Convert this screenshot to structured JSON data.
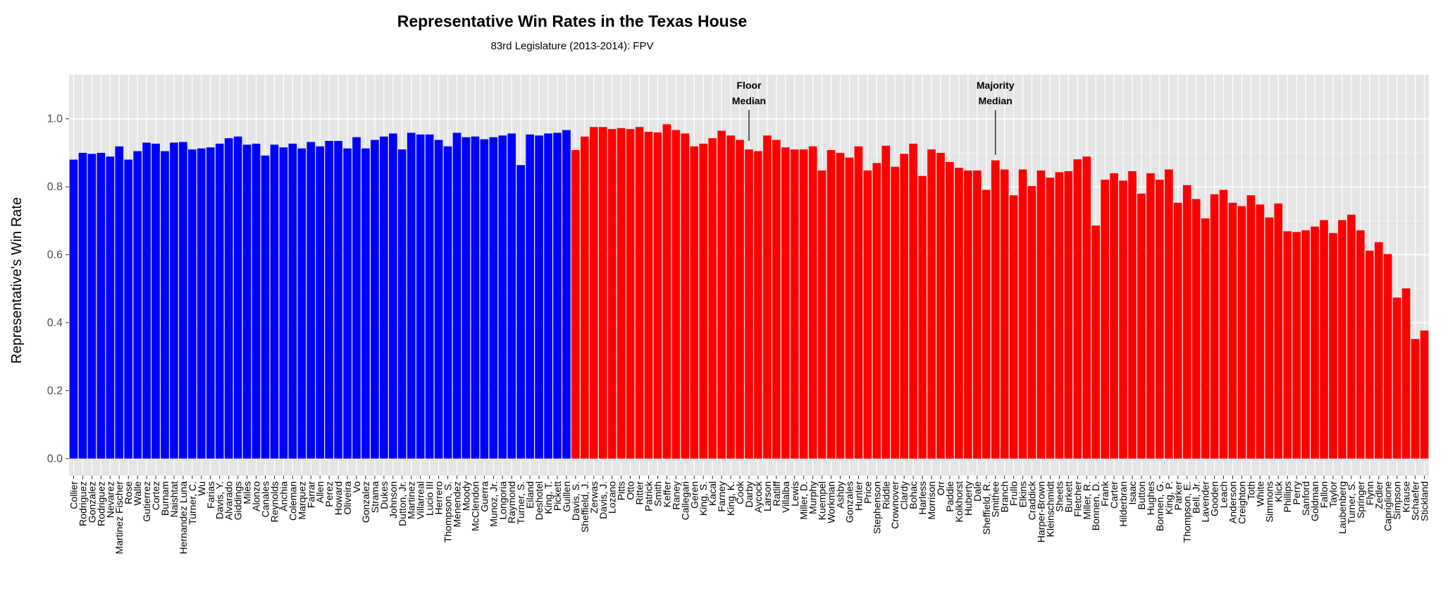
{
  "chart_data": {
    "type": "bar",
    "title": "Representative Win Rates in the Texas House",
    "subtitle": "83rd Legislature (2013-2014): FPV",
    "y_label": "Representative's Win Rate",
    "categories": [
      "Collier",
      "Rodriguez",
      "Gonzalez",
      "Rodriguez",
      "Nevarez",
      "Martinez Fischer",
      "Rose",
      "Walle",
      "Gutierrez",
      "Cortez",
      "Burnam",
      "Naishtat",
      "Hernandez Luna",
      "Turner, C.",
      "Wu",
      "Farias",
      "Davis, Y.",
      "Alvarado",
      "Giddings",
      "Miles",
      "Alonzo",
      "Canales",
      "Reynolds",
      "Anchia",
      "Coleman",
      "Marquez",
      "Farrar",
      "Allen",
      "Perez",
      "Howard",
      "Oliveira",
      "Vo",
      "Gonzalez",
      "Strama",
      "Dukes",
      "Johnson",
      "Dutton, Jr.",
      "Martinez",
      "Villarreal",
      "Lucio III",
      "Herrero",
      "Thompson, S.",
      "Menendez",
      "Moody",
      "McClendon",
      "Guerra",
      "Munoz, Jr.",
      "Longoria",
      "Raymond",
      "Turner, S.",
      "Eiland",
      "Deshotel",
      "King, T.",
      "Pickett",
      "Guillen",
      "Davis, S.",
      "Sheffield, J.",
      "Zerwas",
      "Davis, J.",
      "Lozano",
      "Pitts",
      "Otto",
      "Ritter",
      "Patrick",
      "Smith",
      "Keffer",
      "Raney",
      "Callegari",
      "Geren",
      "King, S.",
      "Kacal",
      "Farney",
      "King, K.",
      "Cook",
      "Darby",
      "Aycock",
      "Larson",
      "Ratliff",
      "Villalba",
      "Lewis",
      "Miller, D.",
      "Murphy",
      "Kuempel",
      "Workman",
      "Ashby",
      "Gonzales",
      "Hunter",
      "Price",
      "Stephenson",
      "Riddle",
      "Crownover",
      "Clardy",
      "Bohac",
      "Harless",
      "Morrison",
      "Orr",
      "Paddie",
      "Kolkhorst",
      "Huberty",
      "Dale",
      "Sheffield, R.",
      "Smithee",
      "Branch",
      "Frullo",
      "Elkins",
      "Craddick",
      "Harper-Brown",
      "Kleinschmidt",
      "Sheets",
      "Burkett",
      "Fletcher",
      "Miller, R.",
      "Bonnen, D.",
      "Frank",
      "Carter",
      "Hilderbran",
      "Isaac",
      "Button",
      "Hughes",
      "Bonnen, G.",
      "King, P.",
      "Parker",
      "Thompson, E.",
      "Bell, Jr.",
      "Lavender",
      "Gooden",
      "Leach",
      "Anderson",
      "Creighton",
      "Toth",
      "White",
      "Simmons",
      "Klick",
      "Phillips",
      "Perry",
      "Sanford",
      "Goldman",
      "Fallon",
      "Taylor",
      "Laubenberg",
      "Turner, S.",
      "Springer",
      "Flynn",
      "Zedler",
      "Capriglione",
      "Simpson",
      "Krause",
      "Schaefer",
      "Stickland"
    ],
    "values": [
      0.88,
      0.9,
      0.897,
      0.9,
      0.889,
      0.919,
      0.88,
      0.905,
      0.93,
      0.927,
      0.905,
      0.93,
      0.932,
      0.91,
      0.913,
      0.916,
      0.927,
      0.943,
      0.948,
      0.924,
      0.927,
      0.892,
      0.924,
      0.916,
      0.927,
      0.913,
      0.932,
      0.919,
      0.935,
      0.935,
      0.913,
      0.946,
      0.913,
      0.938,
      0.948,
      0.957,
      0.91,
      0.959,
      0.954,
      0.954,
      0.938,
      0.919,
      0.959,
      0.946,
      0.948,
      0.94,
      0.946,
      0.951,
      0.957,
      0.864,
      0.954,
      0.951,
      0.957,
      0.959,
      0.967,
      0.908,
      0.948,
      0.976,
      0.976,
      0.97,
      0.973,
      0.97,
      0.976,
      0.962,
      0.96,
      0.984,
      0.967,
      0.957,
      0.919,
      0.927,
      0.943,
      0.965,
      0.951,
      0.938,
      0.91,
      0.905,
      0.951,
      0.938,
      0.916,
      0.91,
      0.91,
      0.919,
      0.848,
      0.908,
      0.9,
      0.886,
      0.919,
      0.848,
      0.87,
      0.921,
      0.859,
      0.897,
      0.927,
      0.832,
      0.91,
      0.9,
      0.873,
      0.856,
      0.848,
      0.848,
      0.791,
      0.878,
      0.851,
      0.775,
      0.851,
      0.802,
      0.848,
      0.827,
      0.843,
      0.846,
      0.881,
      0.889,
      0.686,
      0.821,
      0.84,
      0.818,
      0.846,
      0.78,
      0.84,
      0.821,
      0.851,
      0.753,
      0.805,
      0.764,
      0.707,
      0.778,
      0.791,
      0.753,
      0.743,
      0.775,
      0.748,
      0.71,
      0.751,
      0.669,
      0.667,
      0.672,
      0.683,
      0.702,
      0.664,
      0.702,
      0.718,
      0.672,
      0.612,
      0.637,
      0.602,
      0.474,
      0.501,
      0.352,
      0.377
    ],
    "colors": [
      "#0000ff",
      "#0000ff",
      "#0000ff",
      "#0000ff",
      "#0000ff",
      "#0000ff",
      "#0000ff",
      "#0000ff",
      "#0000ff",
      "#0000ff",
      "#0000ff",
      "#0000ff",
      "#0000ff",
      "#0000ff",
      "#0000ff",
      "#0000ff",
      "#0000ff",
      "#0000ff",
      "#0000ff",
      "#0000ff",
      "#0000ff",
      "#0000ff",
      "#0000ff",
      "#0000ff",
      "#0000ff",
      "#0000ff",
      "#0000ff",
      "#0000ff",
      "#0000ff",
      "#0000ff",
      "#0000ff",
      "#0000ff",
      "#0000ff",
      "#0000ff",
      "#0000ff",
      "#0000ff",
      "#0000ff",
      "#0000ff",
      "#0000ff",
      "#0000ff",
      "#0000ff",
      "#0000ff",
      "#0000ff",
      "#0000ff",
      "#0000ff",
      "#0000ff",
      "#0000ff",
      "#0000ff",
      "#0000ff",
      "#0000ff",
      "#0000ff",
      "#0000ff",
      "#0000ff",
      "#0000ff",
      "#0000ff",
      "#ff0000",
      "#ff0000",
      "#ff0000",
      "#ff0000",
      "#ff0000",
      "#ff0000",
      "#ff0000",
      "#ff0000",
      "#ff0000",
      "#ff0000",
      "#ff0000",
      "#ff0000",
      "#ff0000",
      "#ff0000",
      "#ff0000",
      "#ff0000",
      "#ff0000",
      "#ff0000",
      "#ff0000",
      "#ff0000",
      "#ff0000",
      "#ff0000",
      "#ff0000",
      "#ff0000",
      "#ff0000",
      "#ff0000",
      "#ff0000",
      "#ff0000",
      "#ff0000",
      "#ff0000",
      "#ff0000",
      "#ff0000",
      "#ff0000",
      "#ff0000",
      "#ff0000",
      "#ff0000",
      "#ff0000",
      "#ff0000",
      "#ff0000",
      "#ff0000",
      "#ff0000",
      "#ff0000",
      "#ff0000",
      "#ff0000",
      "#ff0000",
      "#ff0000",
      "#ff0000",
      "#ff0000",
      "#ff0000",
      "#ff0000",
      "#ff0000",
      "#ff0000",
      "#ff0000",
      "#ff0000",
      "#ff0000",
      "#ff0000",
      "#ff0000",
      "#ff0000",
      "#ff0000",
      "#ff0000",
      "#ff0000",
      "#ff0000",
      "#ff0000",
      "#ff0000",
      "#ff0000",
      "#ff0000",
      "#ff0000",
      "#ff0000",
      "#ff0000",
      "#ff0000",
      "#ff0000",
      "#ff0000",
      "#ff0000",
      "#ff0000",
      "#ff0000",
      "#ff0000",
      "#ff0000",
      "#ff0000",
      "#ff0000",
      "#ff0000",
      "#ff0000",
      "#ff0000",
      "#ff0000",
      "#ff0000",
      "#ff0000",
      "#ff0000",
      "#ff0000",
      "#ff0000",
      "#ff0000",
      "#ff0000",
      "#ff0000",
      "#ff0000",
      "#ff0000",
      "#ff0000"
    ],
    "ylim": [
      -0.05,
      1.13
    ],
    "yticks": [
      {
        "value": 0,
        "label": "0.0"
      },
      0.2,
      0.4,
      0.6,
      0.8,
      {
        "value": 1,
        "label": "1.0"
      }
    ],
    "grid": true,
    "annotations": [
      {
        "lines": [
          "Floor",
          "Median"
        ],
        "category_index": 74,
        "value": 0.935
      },
      {
        "lines": [
          "Majority",
          "Median"
        ],
        "category_index": 101,
        "value": 0.894
      }
    ]
  }
}
